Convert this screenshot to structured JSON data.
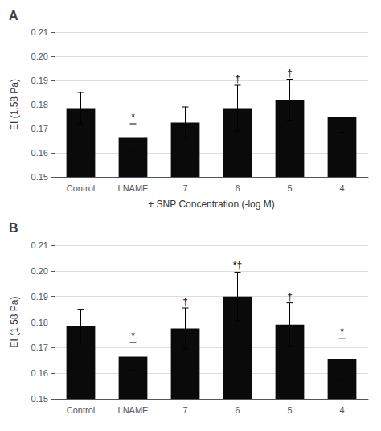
{
  "chart_data": [
    {
      "type": "bar",
      "title": "A",
      "categories": [
        "Control",
        "LNAME",
        "7",
        "6",
        "5",
        "4"
      ],
      "values": [
        0.1785,
        0.1665,
        0.1725,
        0.1785,
        0.182,
        0.175
      ],
      "errors": [
        0.0065,
        0.0055,
        0.0065,
        0.0095,
        0.0085,
        0.0065
      ],
      "annotations": [
        null,
        "*",
        null,
        "†",
        "†",
        null
      ],
      "xlabel": "+ SNP Concentration (-log M)",
      "ylabel": "EI (1.58 Pa)",
      "color": "#0a0a0a",
      "ylim": [
        0.15,
        0.21
      ],
      "yticks": [
        0.15,
        0.16,
        0.17,
        0.18,
        0.19,
        {
          "value": 0.2,
          "label": "0.20"
        },
        0.21
      ],
      "grid": true
    },
    {
      "type": "bar",
      "title": "B",
      "categories": [
        "Control",
        "LNAME",
        "7",
        "6",
        "5",
        "4"
      ],
      "values": [
        0.1785,
        0.1665,
        0.1775,
        0.19,
        0.179,
        0.1655
      ],
      "errors": [
        0.0065,
        0.0055,
        0.008,
        0.0095,
        0.0085,
        0.008
      ],
      "annotations": [
        null,
        "*",
        "†",
        "*†",
        "†",
        "*"
      ],
      "ylabel": "EI (1.58 Pa)",
      "color": "#0a0a0a",
      "ylim": [
        0.15,
        0.21
      ],
      "yticks": [
        0.15,
        0.16,
        0.17,
        0.18,
        0.19,
        {
          "value": 0.2,
          "label": "0.20"
        },
        0.21
      ],
      "grid": true
    }
  ]
}
